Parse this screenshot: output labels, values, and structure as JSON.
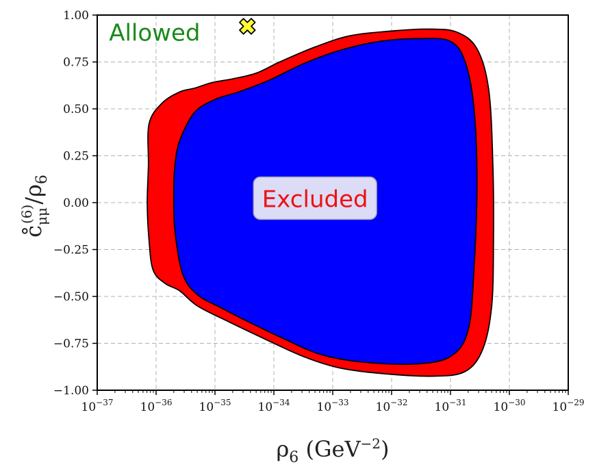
{
  "chart_data": {
    "type": "area",
    "xlabel": "ρ₆ (GeV⁻²)",
    "xlabel_parts": {
      "symbol": "ρ",
      "subscript": "6",
      "unit_open": " (GeV",
      "unit_exp": "−2",
      "unit_close": ")"
    },
    "ylabel": "c̊μμ⁽⁶⁾/ρ₆",
    "ylabel_parts": {
      "symbol": "c̊",
      "subscript": "μμ",
      "superscript": "(6)",
      "denominator": "/ρ",
      "denominator_sub": "6"
    },
    "x_scale": "log",
    "x_exponents": [
      -37,
      -29
    ],
    "x_tick_exponents": [
      -37,
      -36,
      -35,
      -34,
      -33,
      -32,
      -31,
      -30,
      -29
    ],
    "x_tick_base": "10",
    "ylim": [
      -1.0,
      1.0
    ],
    "y_ticks": [
      "−1.00",
      "−0.75",
      "−0.50",
      "−0.25",
      "0.00",
      "0.25",
      "0.50",
      "0.75",
      "1.00"
    ],
    "y_tick_values": [
      -1.0,
      -0.75,
      -0.5,
      -0.25,
      0.0,
      0.25,
      0.5,
      0.75,
      1.0
    ],
    "grid": true,
    "annotations": [
      {
        "text": "Allowed",
        "color": "#1a8a1a",
        "at_log_x": -36.8,
        "at_y": 0.91
      },
      {
        "text": "Excluded",
        "color": "#ee1111",
        "at_log_x": -33.3,
        "at_y": 0.02
      }
    ],
    "marker": {
      "shape": "x",
      "color": "#ffff33",
      "edge": "#000000",
      "log_x": -34.45,
      "y": 0.94
    },
    "regions": [
      {
        "name": "outer-region",
        "color": "#ff0000",
        "boundary_log_x_y": [
          [
            -36.12,
            0.42
          ],
          [
            -35.9,
            0.53
          ],
          [
            -35.6,
            0.59
          ],
          [
            -35.35,
            0.61
          ],
          [
            -35.05,
            0.64
          ],
          [
            -34.7,
            0.66
          ],
          [
            -34.3,
            0.69
          ],
          [
            -33.9,
            0.75
          ],
          [
            -33.3,
            0.83
          ],
          [
            -32.7,
            0.89
          ],
          [
            -32.0,
            0.915
          ],
          [
            -31.4,
            0.925
          ],
          [
            -30.9,
            0.91
          ],
          [
            -30.55,
            0.82
          ],
          [
            -30.35,
            0.6
          ],
          [
            -30.28,
            0.2
          ],
          [
            -30.27,
            -0.2
          ],
          [
            -30.3,
            -0.55
          ],
          [
            -30.45,
            -0.78
          ],
          [
            -30.75,
            -0.9
          ],
          [
            -31.3,
            -0.925
          ],
          [
            -32.2,
            -0.91
          ],
          [
            -32.9,
            -0.88
          ],
          [
            -33.5,
            -0.82
          ],
          [
            -34.2,
            -0.72
          ],
          [
            -34.8,
            -0.63
          ],
          [
            -35.3,
            -0.55
          ],
          [
            -35.6,
            -0.47
          ],
          [
            -35.85,
            -0.43
          ],
          [
            -36.05,
            -0.36
          ],
          [
            -36.12,
            -0.2
          ],
          [
            -36.15,
            0.0
          ],
          [
            -36.13,
            0.2
          ]
        ]
      },
      {
        "name": "inner-region",
        "color": "#0000ff",
        "boundary_log_x_y": [
          [
            -35.6,
            0.33
          ],
          [
            -35.35,
            0.48
          ],
          [
            -35.0,
            0.55
          ],
          [
            -34.6,
            0.59
          ],
          [
            -34.1,
            0.65
          ],
          [
            -33.5,
            0.74
          ],
          [
            -32.9,
            0.81
          ],
          [
            -32.2,
            0.86
          ],
          [
            -31.5,
            0.875
          ],
          [
            -31.0,
            0.86
          ],
          [
            -30.75,
            0.75
          ],
          [
            -30.6,
            0.5
          ],
          [
            -30.55,
            0.1
          ],
          [
            -30.6,
            -0.35
          ],
          [
            -30.7,
            -0.68
          ],
          [
            -31.0,
            -0.82
          ],
          [
            -31.6,
            -0.86
          ],
          [
            -32.5,
            -0.85
          ],
          [
            -33.2,
            -0.81
          ],
          [
            -33.8,
            -0.73
          ],
          [
            -34.4,
            -0.64
          ],
          [
            -34.9,
            -0.56
          ],
          [
            -35.3,
            -0.49
          ],
          [
            -35.55,
            -0.38
          ],
          [
            -35.68,
            -0.15
          ],
          [
            -35.7,
            0.05
          ],
          [
            -35.68,
            0.2
          ]
        ]
      }
    ]
  }
}
